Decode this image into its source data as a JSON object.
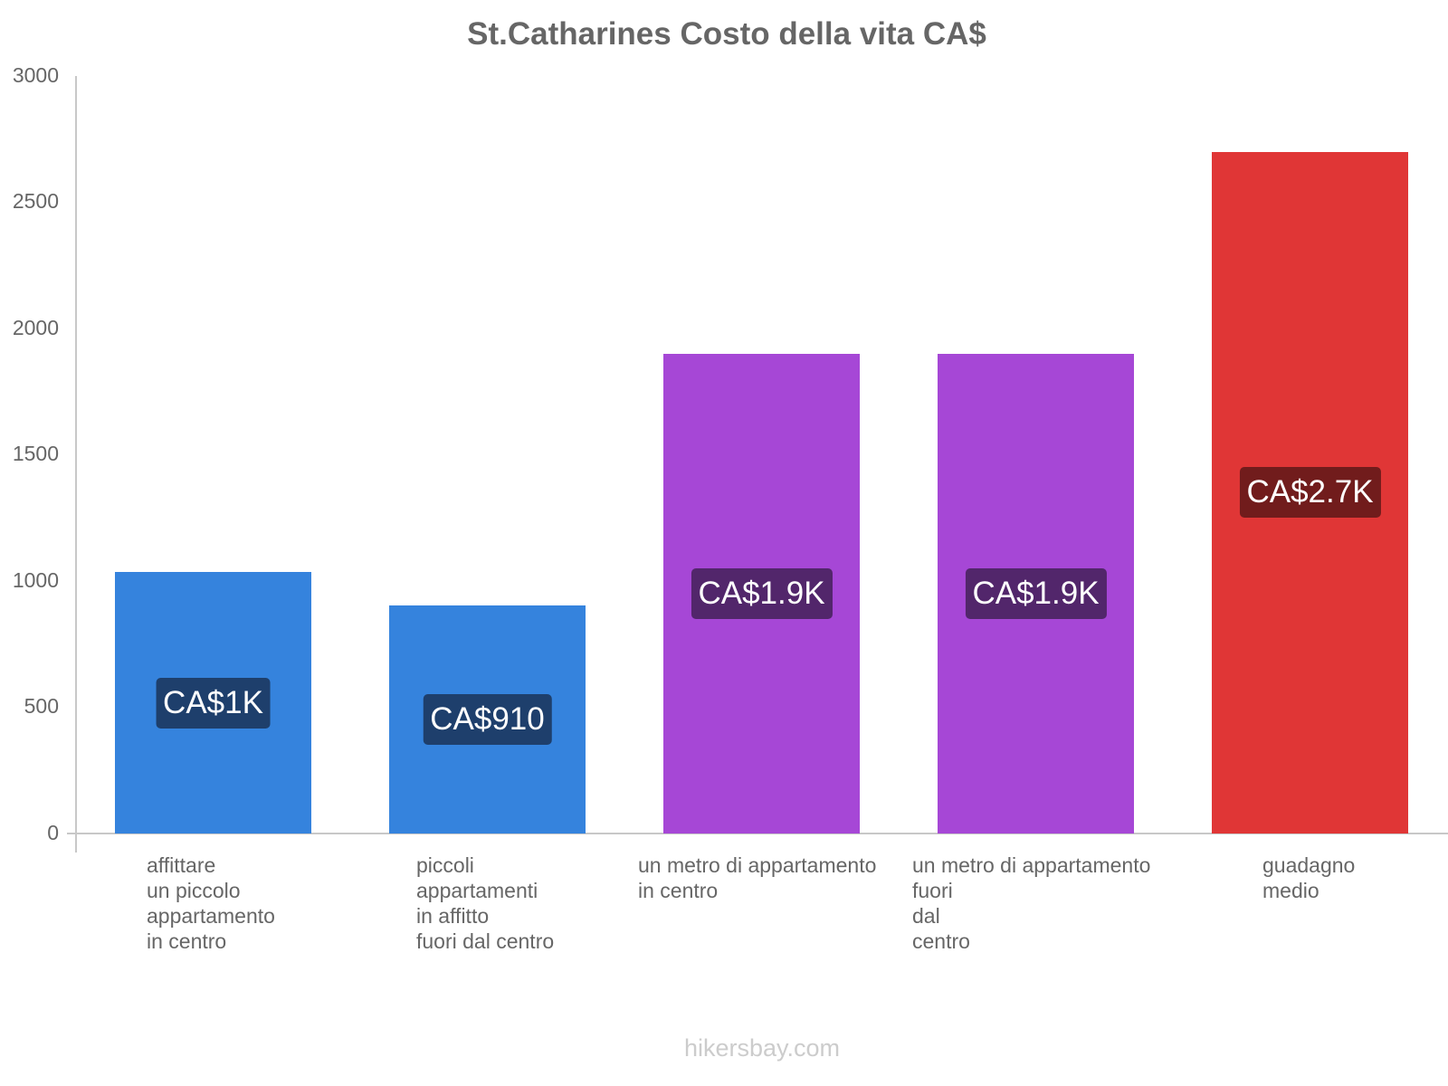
{
  "chart": {
    "title": "St.Catharines Costo della vita CA$",
    "footer": "hikersbay.com",
    "yticks": [
      "3000",
      "2500",
      "2000",
      "1500",
      "1000",
      "500",
      "0"
    ],
    "bars": [
      {
        "label": "affittare\nun piccolo\nappartamento\nin centro",
        "value_label": "CA$1K",
        "color": "#3583dd",
        "label_bg": "#1e3f6c"
      },
      {
        "label": "piccoli\nappartamenti\nin affitto\nfuori dal centro",
        "value_label": "CA$910",
        "color": "#3583dd",
        "label_bg": "#1e3f6c"
      },
      {
        "label": "un metro di appartamento\nin centro",
        "value_label": "CA$1.9K",
        "color": "#a647d6",
        "label_bg": "#52266b"
      },
      {
        "label": "un metro di appartamento\nfuori\ndal\ncentro",
        "value_label": "CA$1.9K",
        "color": "#a647d6",
        "label_bg": "#52266b"
      },
      {
        "label": "guadagno\nmedio",
        "value_label": "CA$2.7K",
        "color": "#e03636",
        "label_bg": "#711c1c"
      }
    ]
  },
  "chart_data": {
    "type": "bar",
    "title": "St.Catharines Costo della vita CA$",
    "categories": [
      "affittare un piccolo appartamento in centro",
      "piccoli appartamenti in affitto fuori dal centro",
      "un metro di appartamento in centro",
      "un metro di appartamento fuori dal centro",
      "guadagno medio"
    ],
    "values": [
      1035,
      905,
      1900,
      1900,
      2700
    ],
    "value_labels": [
      "CA$1K",
      "CA$910",
      "CA$1.9K",
      "CA$1.9K",
      "CA$2.7K"
    ],
    "colors": [
      "#3583dd",
      "#3583dd",
      "#a647d6",
      "#a647d6",
      "#e03636"
    ],
    "xlabel": "",
    "ylabel": "",
    "ylim": [
      0,
      3000
    ],
    "yticks": [
      0,
      500,
      1000,
      1500,
      2000,
      2500,
      3000
    ],
    "grid": false,
    "legend": null,
    "source": "hikersbay.com"
  }
}
